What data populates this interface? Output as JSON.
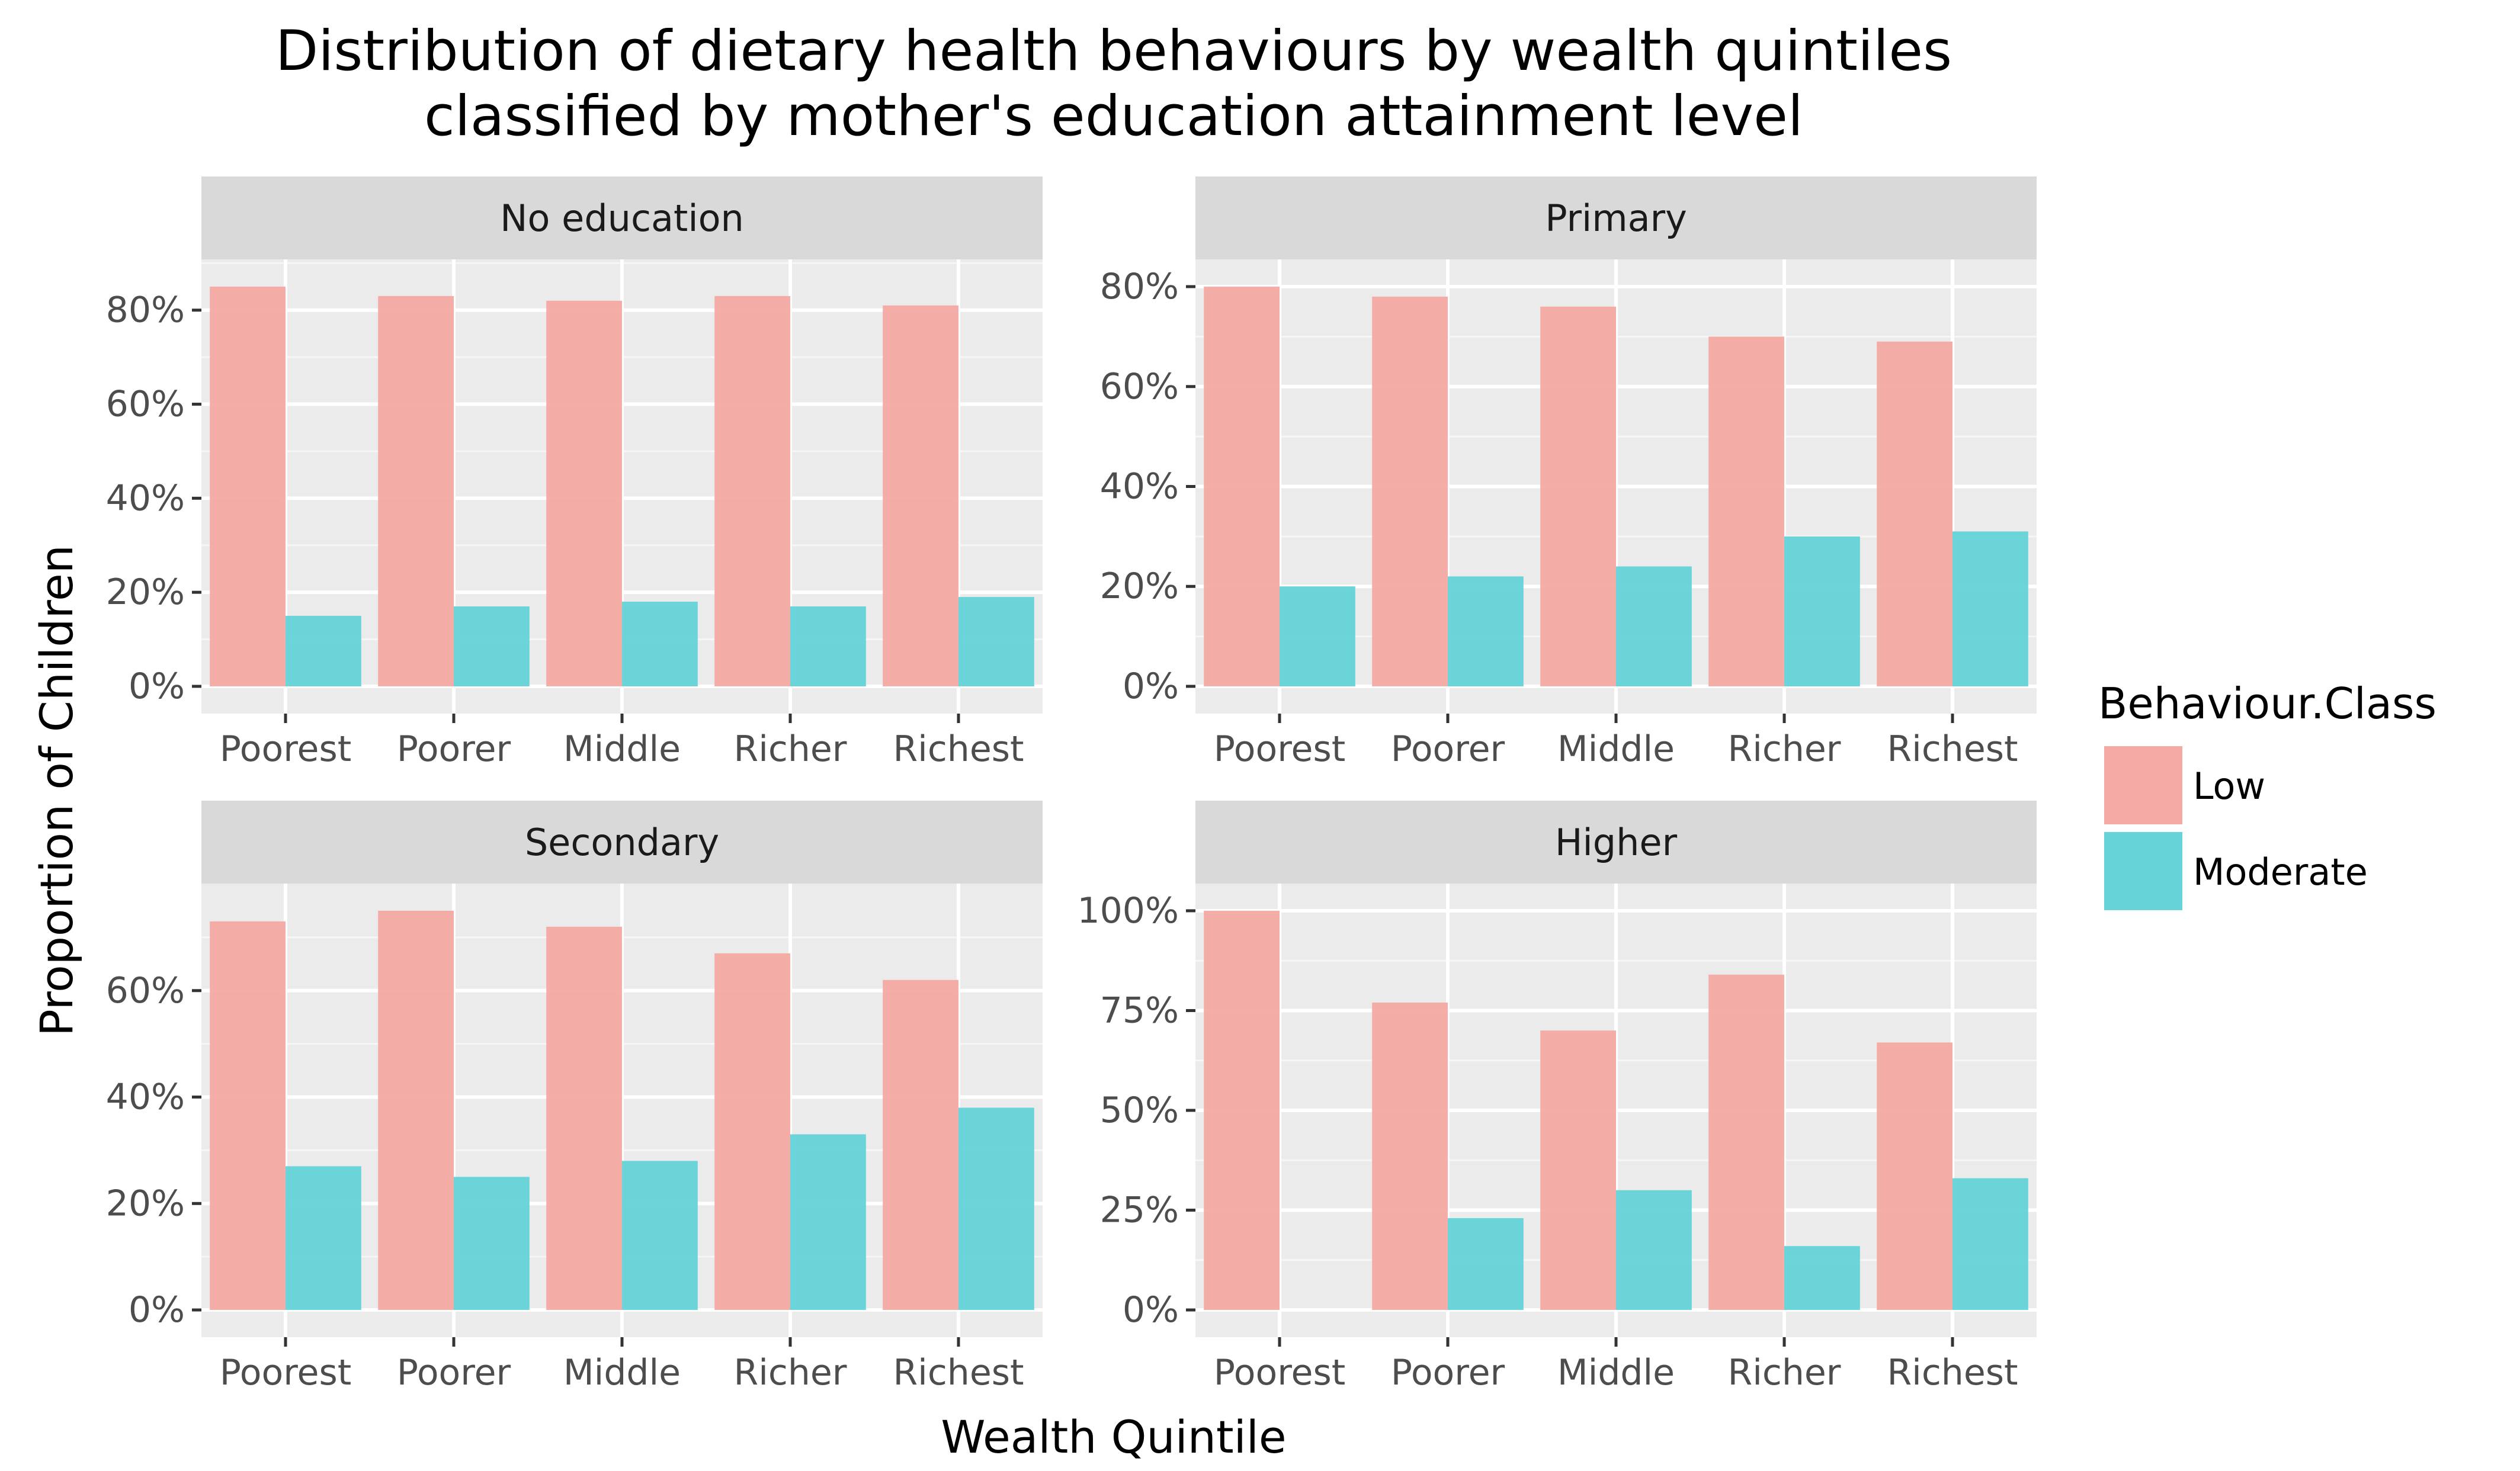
{
  "chart_data": {
    "type": "bar",
    "title": "Distribution of dietary health behaviours by wealth quintiles",
    "subtitle": "classified by mother's education attainment level",
    "xlabel": "Wealth Quintile",
    "ylabel": "Proportion of Children",
    "categories": [
      "Poorest",
      "Poorer",
      "Middle",
      "Richer",
      "Richest"
    ],
    "legend": {
      "title": "Behaviour.Class",
      "placement": "right",
      "entries": [
        "Low",
        "Moderate"
      ]
    },
    "colors": {
      "Low": "#F4A6A0",
      "Moderate": "#5ED1D6",
      "panel_background": "#EBEBEB",
      "grid": "#FFFFFF",
      "strip_background": "#D9D9D9"
    },
    "grid": true,
    "panels": [
      {
        "label": "No education",
        "ylim": [
          0,
          0.85
        ],
        "yticks": [
          0,
          0.2,
          0.4,
          0.6,
          0.8
        ],
        "yticklabels": [
          "0%",
          "20%",
          "40%",
          "60%",
          "80%"
        ],
        "series": [
          {
            "name": "Low",
            "values": [
              0.85,
              0.83,
              0.82,
              0.83,
              0.81
            ]
          },
          {
            "name": "Moderate",
            "values": [
              0.15,
              0.17,
              0.18,
              0.17,
              0.19
            ]
          }
        ]
      },
      {
        "label": "Primary",
        "ylim": [
          0,
          0.8
        ],
        "yticks": [
          0,
          0.2,
          0.4,
          0.6,
          0.8
        ],
        "yticklabels": [
          "0%",
          "20%",
          "40%",
          "60%",
          "80%"
        ],
        "series": [
          {
            "name": "Low",
            "values": [
              0.8,
              0.78,
              0.76,
              0.7,
              0.69
            ]
          },
          {
            "name": "Moderate",
            "values": [
              0.2,
              0.22,
              0.24,
              0.3,
              0.31
            ]
          }
        ]
      },
      {
        "label": "Secondary",
        "ylim": [
          0,
          0.75
        ],
        "yticks": [
          0,
          0.2,
          0.4,
          0.6
        ],
        "yticklabels": [
          "0%",
          "20%",
          "40%",
          "60%"
        ],
        "series": [
          {
            "name": "Low",
            "values": [
              0.73,
              0.75,
              0.72,
              0.67,
              0.62
            ]
          },
          {
            "name": "Moderate",
            "values": [
              0.27,
              0.25,
              0.28,
              0.33,
              0.38
            ]
          }
        ]
      },
      {
        "label": "Higher",
        "ylim": [
          0,
          1.0
        ],
        "yticks": [
          0,
          0.25,
          0.5,
          0.75,
          1.0
        ],
        "yticklabels": [
          "0%",
          "25%",
          "50%",
          "75%",
          "100%"
        ],
        "series": [
          {
            "name": "Low",
            "values": [
              1.0,
              0.77,
              0.7,
              0.84,
              0.67
            ]
          },
          {
            "name": "Moderate",
            "values": [
              0,
              0.23,
              0.3,
              0.16,
              0.33
            ]
          }
        ]
      }
    ]
  }
}
